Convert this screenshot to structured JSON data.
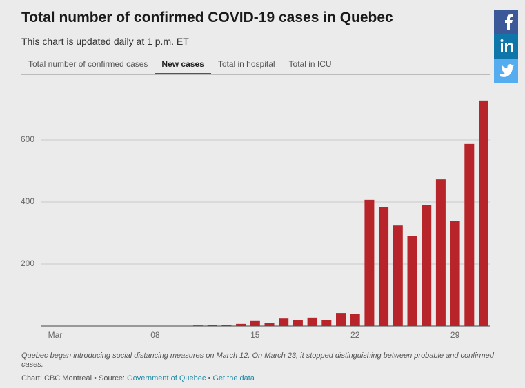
{
  "chart_data": {
    "type": "bar",
    "title": "Total number of confirmed COVID-19 cases in Quebec",
    "subtitle": "This chart is updated daily at 1 p.m. ET",
    "categories": [
      "Mar",
      null,
      null,
      null,
      null,
      null,
      null,
      "08",
      null,
      null,
      null,
      null,
      null,
      null,
      "15",
      null,
      null,
      null,
      null,
      null,
      null,
      "22",
      null,
      null,
      null,
      null,
      null,
      null,
      "29",
      null,
      null
    ],
    "values": [
      0,
      0,
      0,
      0,
      0,
      0,
      0,
      0,
      0,
      0,
      2,
      3,
      4,
      7,
      16,
      11,
      24,
      20,
      27,
      18,
      42,
      38,
      407,
      384,
      324,
      289,
      389,
      473,
      340,
      587,
      727
    ],
    "color": "#b7252a",
    "ylim": [
      0,
      800
    ],
    "yticks": [
      200,
      400,
      600
    ],
    "grid": true
  },
  "tabs": {
    "items": [
      "Total number of confirmed cases",
      "New cases",
      "Total in hospital",
      "Total in ICU"
    ],
    "active": 1
  },
  "note": "Quebec began introducing social distancing measures on March 12. On March 23, it stopped distinguishing between probable and confirmed cases.",
  "credit": {
    "prefix": "Chart: CBC Montreal • Source:",
    "source": "Government of Quebec",
    "separator": "•",
    "link": "Get the data"
  }
}
